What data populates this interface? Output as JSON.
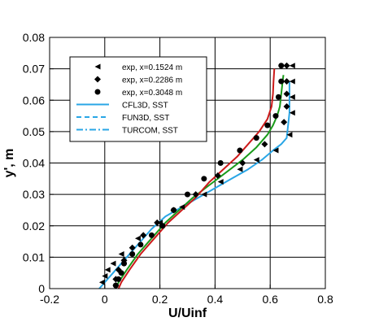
{
  "chart_data": {
    "type": "line",
    "xlabel": "U/Uinf",
    "ylabel": "y', m",
    "xlim": [
      -0.2,
      0.8
    ],
    "ylim": [
      0,
      0.08
    ],
    "xticks": [
      -0.2,
      0,
      0.2,
      0.4,
      0.6,
      0.8
    ],
    "yticks": [
      0,
      0.01,
      0.02,
      0.03,
      0.04,
      0.05,
      0.06,
      0.07,
      0.08
    ],
    "xtick_labels": [
      "-0.2",
      "0",
      "0.2",
      "0.4",
      "0.6",
      "0.8"
    ],
    "ytick_labels": [
      "0",
      "0.01",
      "0.02",
      "0.03",
      "0.04",
      "0.05",
      "0.06",
      "0.07",
      "0.08"
    ],
    "grid": true,
    "legend_position": "top-left inside plot",
    "legend": [
      {
        "label": "exp, x=0.1524 m",
        "kind": "marker",
        "symbol": "triangle-left",
        "color": "#000000"
      },
      {
        "label": "exp, x=0.2286 m",
        "kind": "marker",
        "symbol": "diamond",
        "color": "#000000"
      },
      {
        "label": "exp, x=0.3048 m",
        "kind": "marker",
        "symbol": "circle",
        "color": "#000000"
      },
      {
        "label": "CFL3D, SST",
        "kind": "line",
        "dash": "solid",
        "color": "#29a6e6"
      },
      {
        "label": "FUN3D, SST",
        "kind": "line",
        "dash": "dashed",
        "color": "#29a6e6"
      },
      {
        "label": "TURCOM, SST",
        "kind": "line",
        "dash": "dashdot",
        "color": "#29a6e6"
      }
    ],
    "series": [
      {
        "kind": "line",
        "color": "#29a6e6",
        "width": 2,
        "x": [
          -0.02,
          0.0,
          0.03,
          0.07,
          0.12,
          0.17,
          0.22,
          0.28,
          0.34,
          0.4,
          0.46,
          0.52,
          0.57,
          0.61,
          0.64,
          0.66,
          0.665,
          0.67,
          0.67,
          0.67
        ],
        "y": [
          0.0,
          0.002,
          0.005,
          0.009,
          0.014,
          0.019,
          0.023,
          0.026,
          0.029,
          0.032,
          0.035,
          0.038,
          0.041,
          0.044,
          0.046,
          0.048,
          0.052,
          0.056,
          0.062,
          0.066
        ]
      },
      {
        "kind": "line",
        "color": "#1a9b1a",
        "width": 2,
        "x": [
          0.04,
          0.05,
          0.08,
          0.12,
          0.17,
          0.22,
          0.27,
          0.32,
          0.38,
          0.44,
          0.5,
          0.55,
          0.59,
          0.61,
          0.625,
          0.635,
          0.64,
          0.645,
          0.648
        ],
        "y": [
          0.0,
          0.002,
          0.006,
          0.011,
          0.016,
          0.021,
          0.025,
          0.029,
          0.033,
          0.037,
          0.041,
          0.045,
          0.049,
          0.052,
          0.055,
          0.058,
          0.062,
          0.066,
          0.068
        ]
      },
      {
        "kind": "line",
        "color": "#cc1a1a",
        "width": 2,
        "x": [
          0.05,
          0.06,
          0.09,
          0.13,
          0.18,
          0.23,
          0.28,
          0.33,
          0.38,
          0.43,
          0.48,
          0.52,
          0.56,
          0.59,
          0.605,
          0.61,
          0.612,
          0.615
        ],
        "y": [
          0.0,
          0.002,
          0.006,
          0.011,
          0.016,
          0.021,
          0.025,
          0.029,
          0.034,
          0.038,
          0.042,
          0.046,
          0.05,
          0.054,
          0.058,
          0.062,
          0.066,
          0.07
        ]
      },
      {
        "kind": "marker",
        "symbol": "triangle-left",
        "color": "#000000",
        "x": [
          -0.01,
          0.0,
          0.01,
          0.03,
          0.06,
          0.12,
          0.2,
          0.28,
          0.36,
          0.42,
          0.49,
          0.55,
          0.62,
          0.67,
          0.68,
          0.68,
          0.68,
          0.68
        ],
        "y": [
          0.002,
          0.004,
          0.006,
          0.008,
          0.011,
          0.016,
          0.021,
          0.026,
          0.03,
          0.034,
          0.038,
          0.041,
          0.044,
          0.049,
          0.056,
          0.061,
          0.066,
          0.071
        ]
      },
      {
        "kind": "marker",
        "symbol": "diamond",
        "color": "#000000",
        "x": [
          0.04,
          0.04,
          0.05,
          0.07,
          0.1,
          0.14,
          0.19,
          0.25,
          0.33,
          0.41,
          0.5,
          0.58,
          0.65,
          0.66,
          0.66,
          0.66,
          0.66
        ],
        "y": [
          0.001,
          0.003,
          0.006,
          0.009,
          0.013,
          0.017,
          0.021,
          0.025,
          0.03,
          0.036,
          0.04,
          0.046,
          0.053,
          0.058,
          0.062,
          0.066,
          0.071
        ]
      },
      {
        "kind": "marker",
        "symbol": "circle",
        "color": "#000000",
        "x": [
          0.04,
          0.05,
          0.06,
          0.07,
          0.1,
          0.13,
          0.17,
          0.21,
          0.25,
          0.3,
          0.36,
          0.42,
          0.49,
          0.55,
          0.59,
          0.62,
          0.63,
          0.64,
          0.64
        ],
        "y": [
          0.001,
          0.003,
          0.005,
          0.008,
          0.011,
          0.014,
          0.017,
          0.02,
          0.025,
          0.03,
          0.035,
          0.04,
          0.044,
          0.048,
          0.052,
          0.055,
          0.061,
          0.066,
          0.071
        ]
      }
    ]
  }
}
